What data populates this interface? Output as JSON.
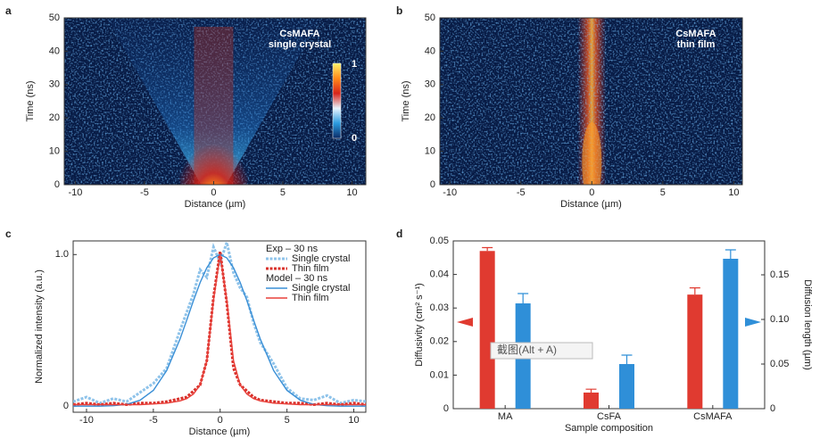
{
  "chart_data": [
    {
      "type": "heatmap",
      "panel_label": "a",
      "annotation": [
        "CsMAFA",
        "single crystal"
      ],
      "colorbar_labels": [
        "1",
        "0"
      ],
      "x_label": "Distance (µm)",
      "y_label": "Time (ns)",
      "xlim": [
        -10.8,
        11
      ],
      "xticks": [
        -10,
        -5,
        0,
        5,
        10
      ],
      "ylim": [
        0,
        50
      ],
      "yticks": [
        0,
        10,
        20,
        30,
        40,
        50
      ]
    },
    {
      "type": "heatmap",
      "panel_label": "b",
      "annotation": [
        "CsMAFA",
        "thin film"
      ],
      "x_label": "Distance (µm)",
      "y_label": "Time (ns)",
      "xlim": [
        -10.7,
        10.6
      ],
      "xticks": [
        -10,
        -5,
        0,
        5,
        10
      ],
      "ylim": [
        0,
        50
      ],
      "yticks": [
        0,
        10,
        20,
        30,
        40,
        50
      ]
    },
    {
      "type": "line",
      "panel_label": "c",
      "x_label": "Distance (µm)",
      "y_label": "Normalized intensity (a.u.)",
      "xlim": [
        -11,
        10.9
      ],
      "xticks": [
        -10,
        -5,
        0,
        5,
        10
      ],
      "ylim": [
        -0.04,
        1.09
      ],
      "yticks": [
        0,
        {
          "value": 1,
          "label": "1.0"
        }
      ],
      "legend_titles": [
        "Exp – 30 ns",
        "Model – 30 ns"
      ],
      "x": [
        -11,
        -10,
        -9,
        -8,
        -7,
        -6,
        -5,
        -4,
        -3,
        -2.5,
        -2,
        -1.5,
        -1,
        -0.5,
        0,
        0.5,
        1,
        1.5,
        2,
        2.5,
        3,
        4,
        5,
        6,
        7,
        8,
        9,
        10,
        11
      ],
      "series": [
        {
          "name": "Single crystal",
          "legend_group": 0,
          "dashed": true,
          "color": "#8ec3ea",
          "values": [
            0.03,
            0.06,
            0.02,
            0.05,
            0.03,
            0.09,
            0.15,
            0.25,
            0.5,
            0.62,
            0.74,
            0.9,
            0.85,
            1.05,
            0.95,
            1.08,
            0.88,
            0.78,
            0.72,
            0.55,
            0.42,
            0.28,
            0.12,
            0.05,
            0.04,
            0.07,
            0.02,
            0.04,
            0.03
          ]
        },
        {
          "name": "Thin film",
          "legend_group": 0,
          "dashed": true,
          "color": "#d9302a",
          "values": [
            0.01,
            0.02,
            0.01,
            0.02,
            0.01,
            0.02,
            0.02,
            0.03,
            0.05,
            0.06,
            0.1,
            0.14,
            0.3,
            0.72,
            1.02,
            0.68,
            0.25,
            0.14,
            0.1,
            0.06,
            0.04,
            0.03,
            0.02,
            0.02,
            0.01,
            0.02,
            0.01,
            0.02,
            0.01
          ]
        },
        {
          "name": "Single crystal",
          "legend_group": 1,
          "dashed": false,
          "color": "#3a8fd6",
          "values": [
            0,
            0,
            0,
            0.003,
            0.012,
            0.039,
            0.104,
            0.235,
            0.443,
            0.568,
            0.696,
            0.816,
            0.913,
            0.978,
            1,
            0.978,
            0.913,
            0.816,
            0.696,
            0.568,
            0.443,
            0.235,
            0.104,
            0.039,
            0.012,
            0.003,
            0,
            0,
            0
          ]
        },
        {
          "name": "Thin film",
          "legend_group": 1,
          "dashed": false,
          "color": "#e8403a",
          "values": [
            0.01,
            0.01,
            0.01,
            0.01,
            0.01,
            0.01,
            0.015,
            0.02,
            0.035,
            0.05,
            0.08,
            0.14,
            0.3,
            0.7,
            1,
            0.7,
            0.3,
            0.14,
            0.08,
            0.05,
            0.035,
            0.02,
            0.015,
            0.01,
            0.01,
            0.01,
            0.01,
            0.01,
            0.01
          ]
        }
      ]
    },
    {
      "type": "bar",
      "panel_label": "d",
      "x_label": "Sample composition",
      "y_label": "Diffusivity (cm² s⁻¹)",
      "y2_label": "Diffusion length (µm)",
      "categories": [
        "MA",
        "CsFA",
        "CsMAFA"
      ],
      "ylim": [
        0,
        0.05
      ],
      "yticks": [
        0,
        0.01,
        0.02,
        0.03,
        0.04,
        0.05
      ],
      "y2lim": [
        0,
        0.188
      ],
      "y2ticks": [
        0,
        0.05,
        {
          "value": 0.1,
          "label": "0.10"
        },
        0.15
      ],
      "series": [
        {
          "color": "#e03a30",
          "values": [
            0.047,
            0.0048,
            0.034
          ],
          "errors": [
            0.001,
            0.001,
            0.002
          ]
        },
        {
          "color": "#2f8fd8",
          "axis": "y2",
          "values": [
            0.118,
            0.05,
            0.168
          ],
          "errors": [
            0.011,
            0.01,
            0.01
          ]
        }
      ]
    }
  ],
  "overlay_text": "截图(Alt + A)"
}
